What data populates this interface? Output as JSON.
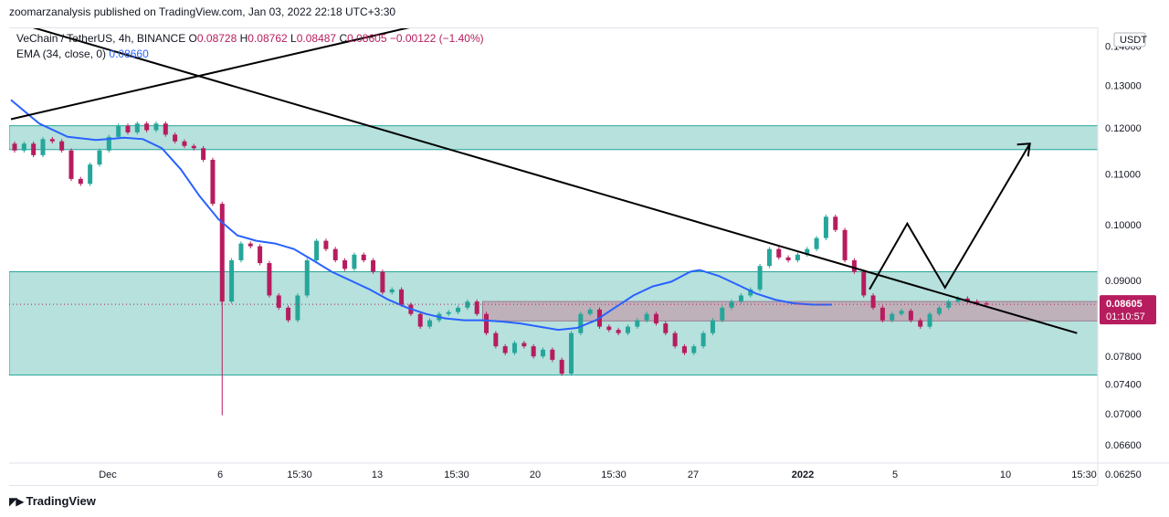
{
  "header": {
    "publisher": "zoomarzanalysis",
    "text": "zoomarzanalysis published on TradingView.com, Jan 03, 2022 22:18 UTC+3:30"
  },
  "legend": {
    "symbol": "VeChain / TetherUS, 4h, BINANCE",
    "o_label": "O",
    "o": "0.08728",
    "h_label": "H",
    "h": "0.08762",
    "l_label": "L",
    "l": "0.08487",
    "c_label": "C",
    "c": "0.08605",
    "change": "−0.00122 (−1.40%)",
    "ema_label": "EMA (34, close, 0)",
    "ema_value": "0.08660"
  },
  "footer": {
    "brand": "TradingView"
  },
  "colors": {
    "up": "#26a69a",
    "down": "#b71c5e",
    "ema": "#2962ff",
    "zone_fill": "#b2dfdb",
    "zone_edge": "#26a69a",
    "range_fill": "#c0a8b4",
    "price_label": "#b71c5e",
    "trendline": "#000000"
  },
  "chart_data": {
    "type": "candlestick",
    "title": "VeChain / TetherUS, 4h, BINANCE",
    "currency": "USDT",
    "ylim": [
      0.0612,
      0.1448
    ],
    "y_scale": "log",
    "y_ticks": [
      "0.14000",
      "0.13000",
      "0.12000",
      "0.11000",
      "0.10000",
      "0.09000",
      "0.07800",
      "0.07400",
      "0.07000",
      "0.06600",
      "0.06250"
    ],
    "x_ticks": [
      "Dec",
      "6",
      "15:30",
      "13",
      "15:30",
      "20",
      "15:30",
      "27",
      "2022",
      "5",
      "10",
      "15:30"
    ],
    "last_price": "0.08605",
    "countdown": "01:10:57",
    "zones": [
      {
        "name": "resistance-zone",
        "from": 0.1152,
        "to": 0.1205
      },
      {
        "name": "support-zone",
        "from": 0.0753,
        "to": 0.0915
      },
      {
        "name": "range-band",
        "from": 0.0834,
        "to": 0.0865
      }
    ],
    "trendlines": [
      {
        "name": "upper-rising-trendline",
        "points": [
          [
            0,
            0.122
          ],
          [
            48,
            0.1485
          ]
        ]
      },
      {
        "name": "descending-trendline",
        "points": [
          [
            0,
            0.1468
          ],
          [
            113,
            0.0815
          ]
        ]
      }
    ],
    "projection_path": [
      [
        91,
        0.0885
      ],
      [
        95,
        0.1002
      ],
      [
        99,
        0.0888
      ],
      [
        108,
        0.1165
      ]
    ],
    "ema_points": [
      [
        0,
        0.1265
      ],
      [
        3,
        0.121
      ],
      [
        6,
        0.118
      ],
      [
        9,
        0.1173
      ],
      [
        12,
        0.1178
      ],
      [
        14,
        0.1175
      ],
      [
        16,
        0.1155
      ],
      [
        18,
        0.111
      ],
      [
        20,
        0.1055
      ],
      [
        22,
        0.101
      ],
      [
        24,
        0.098
      ],
      [
        26,
        0.097
      ],
      [
        28,
        0.0965
      ],
      [
        30,
        0.0955
      ],
      [
        32,
        0.0935
      ],
      [
        34,
        0.0915
      ],
      [
        36,
        0.09
      ],
      [
        38,
        0.0885
      ],
      [
        40,
        0.0868
      ],
      [
        42,
        0.0855
      ],
      [
        44,
        0.0845
      ],
      [
        46,
        0.0838
      ],
      [
        48,
        0.0835
      ],
      [
        50,
        0.0835
      ],
      [
        52,
        0.0833
      ],
      [
        54,
        0.083
      ],
      [
        56,
        0.0825
      ],
      [
        58,
        0.082
      ],
      [
        60,
        0.0823
      ],
      [
        62,
        0.0835
      ],
      [
        64,
        0.0855
      ],
      [
        66,
        0.0875
      ],
      [
        68,
        0.089
      ],
      [
        70,
        0.0898
      ],
      [
        72,
        0.0915
      ],
      [
        73,
        0.0918
      ],
      [
        75,
        0.0908
      ],
      [
        77,
        0.0893
      ],
      [
        79,
        0.0878
      ],
      [
        81,
        0.0868
      ],
      [
        83,
        0.0862
      ],
      [
        85,
        0.086
      ],
      [
        87,
        0.086
      ]
    ],
    "candle_closes": [
      0.115,
      0.1165,
      0.114,
      0.1175,
      0.117,
      0.115,
      0.109,
      0.108,
      0.112,
      0.115,
      0.118,
      0.1205,
      0.119,
      0.121,
      0.1195,
      0.121,
      0.1185,
      0.117,
      0.116,
      0.1155,
      0.113,
      0.104,
      0.0865,
      0.0935,
      0.0965,
      0.096,
      0.093,
      0.0875,
      0.0855,
      0.0835,
      0.0875,
      0.0935,
      0.097,
      0.0955,
      0.0935,
      0.092,
      0.0945,
      0.0935,
      0.0915,
      0.088,
      0.0885,
      0.086,
      0.0845,
      0.0825,
      0.0835,
      0.0845,
      0.0848,
      0.0855,
      0.0865,
      0.0845,
      0.0815,
      0.0795,
      0.0785,
      0.08,
      0.0795,
      0.078,
      0.079,
      0.0775,
      0.0755,
      0.0815,
      0.0845,
      0.0852,
      0.0825,
      0.082,
      0.0815,
      0.0825,
      0.0835,
      0.0845,
      0.083,
      0.0815,
      0.0795,
      0.0785,
      0.0795,
      0.0815,
      0.0835,
      0.0855,
      0.0865,
      0.0875,
      0.0885,
      0.0925,
      0.0955,
      0.094,
      0.0935,
      0.0945,
      0.0955,
      0.0975,
      0.1015,
      0.099,
      0.0935,
      0.0915,
      0.0875,
      0.0855,
      0.0835,
      0.0845,
      0.085,
      0.0835,
      0.0825,
      0.0845,
      0.0855,
      0.0865,
      0.087,
      0.0865,
      0.0862,
      0.086
    ]
  }
}
